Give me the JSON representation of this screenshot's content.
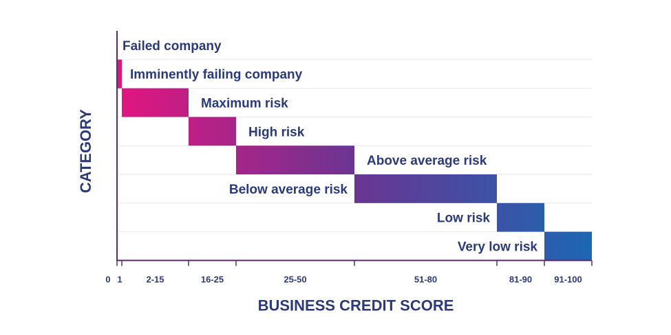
{
  "chart_data": {
    "type": "bar",
    "xlabel": "BUSINESS CREDIT SCORE",
    "ylabel": "CATEGORY",
    "xlim": [
      0,
      100
    ],
    "categories": [
      "Failed company",
      "Imminently failing company",
      "Maximum risk",
      "High risk",
      "Above average risk",
      "Below average risk",
      "Low risk",
      "Very low risk"
    ],
    "ranges": [
      [
        0,
        0
      ],
      [
        0,
        1
      ],
      [
        1,
        15
      ],
      [
        15,
        25
      ],
      [
        25,
        50
      ],
      [
        50,
        80
      ],
      [
        80,
        90
      ],
      [
        90,
        100
      ]
    ],
    "tick_labels": [
      "0",
      "1",
      "2-15",
      "16-25",
      "25-50",
      "51-80",
      "81-90",
      "91-100"
    ],
    "colors": {
      "start": "#e3157f",
      "mid": "#6a3592",
      "end": "#1c67b3",
      "text": "#2b3a7a",
      "axis": "#5a2a6e"
    }
  }
}
